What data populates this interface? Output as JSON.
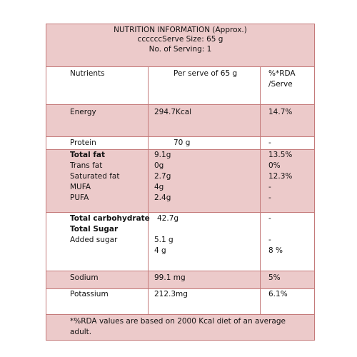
{
  "header": {
    "title": "NUTRITION INFORMATION (Approx.)",
    "serve_size": "ccccccServe Size: 65 g",
    "servings": "No. of Serving: 1"
  },
  "columns": {
    "nutrients": "Nutrients",
    "per_serve": "Per serve of 65 g",
    "rda_line1": "%*RDA",
    "rda_line2": "/Serve"
  },
  "rows": {
    "energy": {
      "name": "Energy",
      "value": "294.7Kcal",
      "rda": "14.7%"
    },
    "protein": {
      "name": "Protein",
      "value": "70 g",
      "rda": "-"
    },
    "total_fat": {
      "name": "Total fat",
      "value": "9.1g",
      "rda": "13.5%"
    },
    "trans_fat": {
      "name": "Trans fat",
      "value": "0g",
      "rda": "0%"
    },
    "saturated_fat": {
      "name": "Saturated fat",
      "value": "2.7g",
      "rda": "12.3%"
    },
    "mufa": {
      "name": "MUFA",
      "value": "4g",
      "rda": "-"
    },
    "pufa": {
      "name": "PUFA",
      "value": "2.4g",
      "rda": "-"
    },
    "total_carb": {
      "name": "Total carbohydrate",
      "value": "42.7g",
      "rda": "-"
    },
    "total_sugar": {
      "name": "Total Sugar",
      "value": "5.1 g",
      "rda": "-"
    },
    "added_sugar": {
      "name": "Added sugar",
      "value": "4 g",
      "rda": "8 %"
    },
    "sodium": {
      "name": "Sodium",
      "value": "99.1 mg",
      "rda": "5%"
    },
    "potassium": {
      "name": "Potassium",
      "value": "212.3mg",
      "rda": "6.1%"
    }
  },
  "footnote": {
    "line1": "*%RDA values are based on 2000 Kcal diet of an average",
    "line2": "adult."
  }
}
